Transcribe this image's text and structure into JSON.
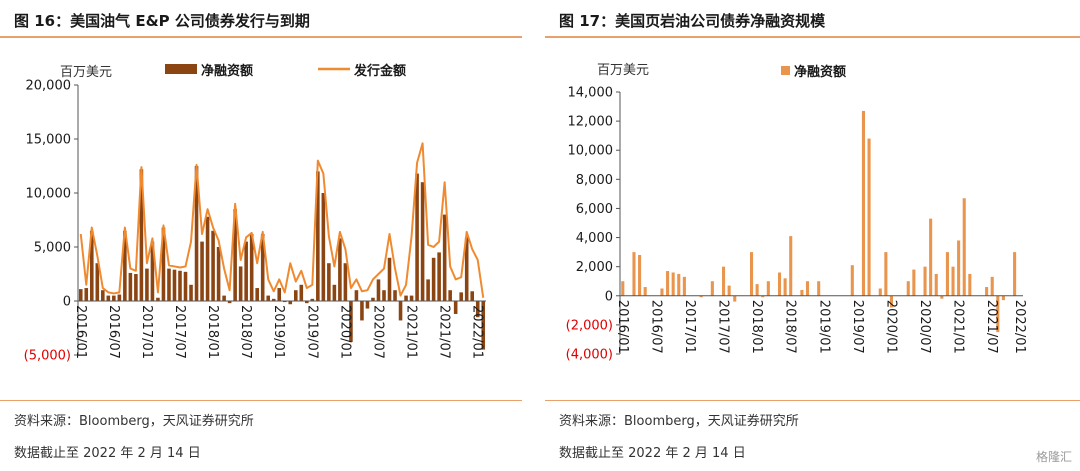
{
  "colors": {
    "accent_rule": "#e8a16b",
    "net_left": "#8b4513",
    "issue_left": "#f08a30",
    "net_right": "#e9954d",
    "negative_label": "#e00000",
    "axis": "#333333"
  },
  "left_panel": {
    "title": "图 16：美国油气 E&P 公司债券发行与到期",
    "source": "资料来源：Bloomberg，天风证券研究所",
    "cutoff": "数据截止至 2022 年 2 月 14 日",
    "chart_data": {
      "type": "bar",
      "unit_label": "百万美元",
      "ylim": [
        -5000,
        20000
      ],
      "yticks": [
        20000,
        15000,
        10000,
        5000,
        0,
        -5000
      ],
      "ytick_labels": [
        "20,000",
        "15,000",
        "10,000",
        "5,000",
        "0",
        "(5,000)"
      ],
      "x_labels": [
        "2016/01",
        "2016/07",
        "2017/01",
        "2017/07",
        "2018/01",
        "2018/07",
        "2019/01",
        "2019/07",
        "2020/01",
        "2020/07",
        "2021/01",
        "2021/07",
        "2022/01"
      ],
      "legend": [
        {
          "name": "净融资额",
          "kind": "bar"
        },
        {
          "name": "发行金额",
          "kind": "line"
        }
      ],
      "series": [
        {
          "name": "净融资额",
          "values": [
            1100,
            1200,
            6500,
            3500,
            1000,
            500,
            500,
            600,
            6500,
            2600,
            2500,
            12200,
            3000,
            5500,
            300,
            6800,
            3000,
            2900,
            2800,
            2700,
            1500,
            12500,
            5500,
            7800,
            6500,
            5000,
            500,
            -200,
            8500,
            3200,
            5500,
            6200,
            1200,
            6200,
            500,
            200,
            1200,
            -100,
            -300,
            1000,
            1500,
            -200,
            200,
            12000,
            10000,
            3500,
            1500,
            5800,
            3500,
            -3800,
            1000,
            -1800,
            -700,
            300,
            2000,
            1000,
            4000,
            1000,
            -1800,
            500,
            500,
            11800,
            11000,
            2000,
            4000,
            4500,
            8000,
            1000,
            -1200,
            800,
            5900,
            900,
            -1500,
            -4500
          ]
        },
        {
          "name": "发行金额",
          "values": [
            6200,
            1500,
            6800,
            4200,
            1200,
            800,
            700,
            800,
            6800,
            3000,
            2800,
            12400,
            3500,
            5800,
            800,
            7000,
            3300,
            3200,
            3100,
            3200,
            5500,
            12600,
            6200,
            8500,
            6800,
            5600,
            3000,
            1000,
            9000,
            3800,
            5900,
            6300,
            3500,
            6400,
            2000,
            900,
            2000,
            800,
            3500,
            1800,
            2800,
            1200,
            1500,
            13000,
            11800,
            6000,
            3200,
            6400,
            4800,
            1200,
            2000,
            900,
            1000,
            2000,
            2500,
            3000,
            6200,
            3000,
            500,
            1500,
            6000,
            12800,
            14600,
            5200,
            5000,
            5500,
            11000,
            3200,
            2000,
            2200,
            6400,
            4800,
            3800,
            300
          ]
        }
      ]
    }
  },
  "right_panel": {
    "title": "图 17：美国页岩油公司债券净融资规模",
    "source": "资料来源：Bloomberg，天风证券研究所",
    "cutoff": "数据截止至 2022 年 2 月 14 日",
    "chart_data": {
      "type": "bar",
      "unit_label": "百万美元",
      "ylim": [
        -4000,
        14000
      ],
      "yticks": [
        14000,
        12000,
        10000,
        8000,
        6000,
        4000,
        2000,
        0,
        -2000,
        -4000
      ],
      "ytick_labels": [
        "14,000",
        "12,000",
        "10,000",
        "8,000",
        "6,000",
        "4,000",
        "2,000",
        "0",
        "(2,000)",
        "(4,000)"
      ],
      "x_labels": [
        "2016/01",
        "2016/07",
        "2017/01",
        "2017/07",
        "2018/01",
        "2018/07",
        "2019/01",
        "2019/07",
        "2020/01",
        "2020/07",
        "2021/01",
        "2021/07",
        "2022/01"
      ],
      "legend": [
        {
          "name": "净融资额",
          "kind": "bar"
        }
      ],
      "series": [
        {
          "name": "净融资额",
          "values": [
            1000,
            0,
            3000,
            2800,
            600,
            0,
            0,
            500,
            1700,
            1600,
            1500,
            1300,
            0,
            0,
            -100,
            0,
            1000,
            0,
            2000,
            700,
            -400,
            0,
            0,
            3000,
            800,
            -100,
            1000,
            0,
            1600,
            1200,
            4100,
            0,
            400,
            1000,
            0,
            1000,
            0,
            0,
            0,
            0,
            0,
            2100,
            0,
            12700,
            10800,
            0,
            500,
            3000,
            -800,
            0,
            0,
            1000,
            1800,
            0,
            2000,
            5300,
            1500,
            -200,
            3000,
            2000,
            3800,
            6700,
            1500,
            0,
            0,
            600,
            1300,
            -2500,
            -300,
            0,
            3000,
            0
          ]
        }
      ]
    }
  },
  "watermark": "格隆汇"
}
